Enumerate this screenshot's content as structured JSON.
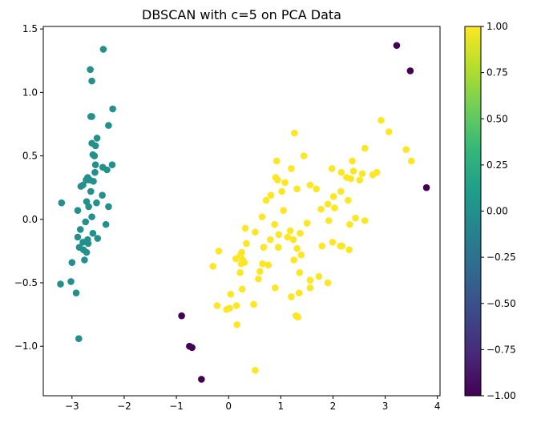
{
  "colors": {
    "viridis_stops": [
      "#440154",
      "#482878",
      "#3e4989",
      "#31688e",
      "#26828e",
      "#1f9e89",
      "#35b779",
      "#6ece58",
      "#b5de2b",
      "#fde725"
    ],
    "noise": "#440154",
    "cluster0": "#21918c",
    "cluster1": "#fde725"
  },
  "chart_data": {
    "type": "scatter",
    "title": "DBSCAN with c=5 on PCA Data",
    "xlabel": "",
    "ylabel": "",
    "xlim": [
      -3.55,
      4.05
    ],
    "ylim": [
      -1.39,
      1.52
    ],
    "x_ticks": [
      -3,
      -2,
      -1,
      0,
      1,
      2,
      3,
      4
    ],
    "x_tick_labels": [
      "−3",
      "−2",
      "−1",
      "0",
      "1",
      "2",
      "3",
      "4"
    ],
    "y_ticks": [
      -1.0,
      -0.5,
      0.0,
      0.5,
      1.0,
      1.5
    ],
    "y_tick_labels": [
      "−1.0",
      "−0.5",
      "0.0",
      "0.5",
      "1.0",
      "1.5"
    ],
    "grid": false,
    "legend": "none",
    "colorbar": {
      "range": [
        -1.0,
        1.0
      ],
      "ticks": [
        -1.0,
        -0.75,
        -0.5,
        -0.25,
        0.0,
        0.25,
        0.5,
        0.75,
        1.0
      ],
      "tick_labels": [
        "−1.00",
        "−0.75",
        "−0.50",
        "−0.25",
        "0.00",
        "0.25",
        "0.50",
        "0.75",
        "1.00"
      ],
      "colormap": "viridis",
      "placement": "right"
    },
    "series": [
      {
        "label_value": -1,
        "points": [
          [
            3.22,
            1.37
          ],
          [
            3.48,
            1.17
          ],
          [
            3.79,
            0.25
          ],
          [
            -0.9,
            -0.76
          ],
          [
            -0.75,
            -1.0
          ],
          [
            -0.7,
            -1.01
          ],
          [
            -0.52,
            -1.26
          ]
        ]
      },
      {
        "label_value": 0,
        "points": [
          [
            -2.4,
            1.34
          ],
          [
            -2.65,
            1.18
          ],
          [
            -2.62,
            1.09
          ],
          [
            -2.22,
            0.87
          ],
          [
            -2.64,
            0.81
          ],
          [
            -2.62,
            0.81
          ],
          [
            -2.3,
            0.74
          ],
          [
            -2.52,
            0.64
          ],
          [
            -2.62,
            0.6
          ],
          [
            -2.55,
            0.58
          ],
          [
            -2.6,
            0.51
          ],
          [
            -2.57,
            0.5
          ],
          [
            -2.23,
            0.43
          ],
          [
            -2.55,
            0.43
          ],
          [
            -2.41,
            0.41
          ],
          [
            -2.33,
            0.39
          ],
          [
            -2.56,
            0.37
          ],
          [
            -2.7,
            0.33
          ],
          [
            -2.73,
            0.31
          ],
          [
            -2.66,
            0.31
          ],
          [
            -2.59,
            0.3
          ],
          [
            -2.79,
            0.27
          ],
          [
            -2.83,
            0.26
          ],
          [
            -2.64,
            0.22
          ],
          [
            -2.42,
            0.19
          ],
          [
            -2.72,
            0.14
          ],
          [
            -2.53,
            0.13
          ],
          [
            -2.3,
            0.1
          ],
          [
            -3.2,
            0.13
          ],
          [
            -2.68,
            0.1
          ],
          [
            -2.89,
            0.07
          ],
          [
            -2.62,
            0.02
          ],
          [
            -2.74,
            -0.02
          ],
          [
            -2.35,
            -0.04
          ],
          [
            -2.84,
            -0.08
          ],
          [
            -2.6,
            -0.11
          ],
          [
            -2.89,
            -0.14
          ],
          [
            -2.7,
            -0.16
          ],
          [
            -2.51,
            -0.15
          ],
          [
            -2.79,
            -0.18
          ],
          [
            -2.69,
            -0.19
          ],
          [
            -2.86,
            -0.22
          ],
          [
            -2.78,
            -0.24
          ],
          [
            -2.72,
            -0.26
          ],
          [
            -2.76,
            -0.32
          ],
          [
            -3.0,
            -0.34
          ],
          [
            -3.02,
            -0.49
          ],
          [
            -3.22,
            -0.51
          ],
          [
            -2.92,
            -0.58
          ],
          [
            -2.87,
            -0.94
          ]
        ]
      },
      {
        "label_value": 1,
        "points": [
          [
            1.26,
            0.68
          ],
          [
            2.92,
            0.78
          ],
          [
            3.07,
            0.69
          ],
          [
            2.61,
            0.56
          ],
          [
            3.4,
            0.55
          ],
          [
            1.44,
            0.5
          ],
          [
            0.92,
            0.46
          ],
          [
            2.37,
            0.46
          ],
          [
            3.5,
            0.46
          ],
          [
            1.2,
            0.4
          ],
          [
            1.98,
            0.4
          ],
          [
            2.39,
            0.38
          ],
          [
            2.16,
            0.37
          ],
          [
            2.84,
            0.37
          ],
          [
            2.56,
            0.36
          ],
          [
            2.76,
            0.35
          ],
          [
            0.9,
            0.33
          ],
          [
            2.26,
            0.33
          ],
          [
            2.34,
            0.32
          ],
          [
            0.94,
            0.31
          ],
          [
            2.51,
            0.31
          ],
          [
            1.08,
            0.29
          ],
          [
            1.56,
            0.27
          ],
          [
            1.68,
            0.24
          ],
          [
            1.31,
            0.24
          ],
          [
            1.02,
            0.22
          ],
          [
            2.15,
            0.22
          ],
          [
            0.81,
            0.19
          ],
          [
            2.01,
            0.18
          ],
          [
            0.72,
            0.15
          ],
          [
            2.29,
            0.15
          ],
          [
            1.9,
            0.12
          ],
          [
            1.77,
            0.08
          ],
          [
            2.03,
            0.09
          ],
          [
            1.05,
            0.07
          ],
          [
            0.64,
            0.02
          ],
          [
            2.43,
            0.01
          ],
          [
            1.92,
            -0.01
          ],
          [
            1.5,
            -0.03
          ],
          [
            0.88,
            -0.04
          ],
          [
            2.61,
            -0.01
          ],
          [
            2.32,
            -0.04
          ],
          [
            0.32,
            -0.07
          ],
          [
            1.18,
            -0.09
          ],
          [
            0.51,
            -0.1
          ],
          [
            1.37,
            -0.11
          ],
          [
            0.96,
            -0.12
          ],
          [
            1.13,
            -0.14
          ],
          [
            1.99,
            -0.18
          ],
          [
            0.8,
            -0.16
          ],
          [
            1.24,
            -0.16
          ],
          [
            0.34,
            -0.19
          ],
          [
            1.79,
            -0.21
          ],
          [
            2.14,
            -0.21
          ],
          [
            2.17,
            -0.21
          ],
          [
            0.95,
            -0.22
          ],
          [
            0.25,
            -0.26
          ],
          [
            1.31,
            -0.23
          ],
          [
            0.67,
            -0.22
          ],
          [
            1.39,
            -0.28
          ],
          [
            -0.19,
            -0.25
          ],
          [
            0.23,
            -0.28
          ],
          [
            2.31,
            -0.24
          ],
          [
            0.27,
            -0.32
          ],
          [
            1.25,
            -0.32
          ],
          [
            0.14,
            -0.31
          ],
          [
            0.3,
            -0.34
          ],
          [
            0.24,
            -0.35
          ],
          [
            0.65,
            -0.35
          ],
          [
            -0.3,
            -0.37
          ],
          [
            1.36,
            -0.42
          ],
          [
            0.76,
            -0.36
          ],
          [
            0.6,
            -0.41
          ],
          [
            1.56,
            -0.48
          ],
          [
            1.73,
            -0.45
          ],
          [
            0.22,
            -0.42
          ],
          [
            0.57,
            -0.47
          ],
          [
            1.9,
            -0.5
          ],
          [
            0.89,
            -0.54
          ],
          [
            0.26,
            -0.55
          ],
          [
            1.35,
            -0.58
          ],
          [
            1.56,
            -0.54
          ],
          [
            0.04,
            -0.59
          ],
          [
            1.2,
            -0.61
          ],
          [
            -0.22,
            -0.68
          ],
          [
            0.02,
            -0.7
          ],
          [
            0.48,
            -0.67
          ],
          [
            -0.04,
            -0.71
          ],
          [
            0.15,
            -0.68
          ],
          [
            1.29,
            -0.76
          ],
          [
            1.33,
            -0.77
          ],
          [
            0.16,
            -0.83
          ],
          [
            0.51,
            -1.19
          ]
        ]
      }
    ]
  }
}
